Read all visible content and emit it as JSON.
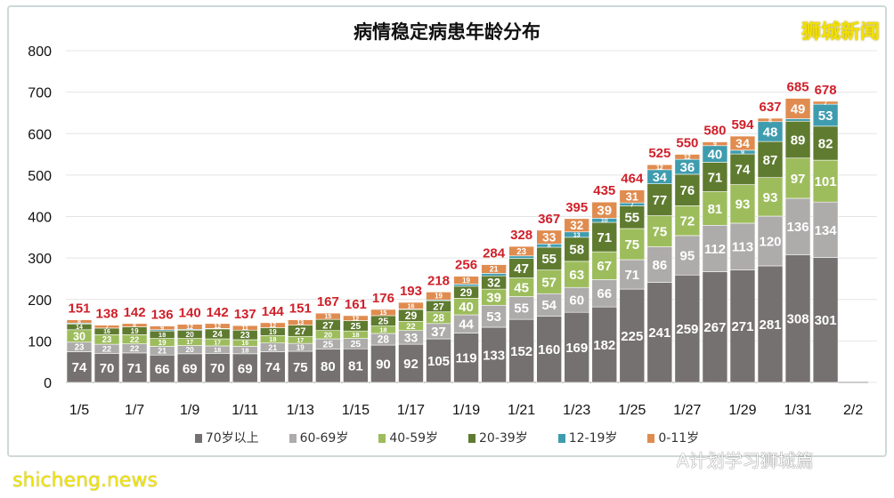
{
  "logo_text": "狮城新闻",
  "watermarks": {
    "site": "shicheng.news",
    "wechat": "A计划学习狮城篇"
  },
  "chart_data": {
    "type": "bar",
    "stacked": true,
    "title": "病情稳定病患年龄分布",
    "xlabel": "",
    "ylabel": "",
    "ylim": [
      0,
      800
    ],
    "yticks": [
      0,
      100,
      200,
      300,
      400,
      500,
      600,
      700,
      800
    ],
    "grid": true,
    "legend_position": "bottom",
    "categories": [
      "1/5",
      "1/6",
      "1/7",
      "1/8",
      "1/9",
      "1/10",
      "1/11",
      "1/12",
      "1/13",
      "1/14",
      "1/15",
      "1/16",
      "1/17",
      "1/18",
      "1/19",
      "1/20",
      "1/21",
      "1/22",
      "1/23",
      "1/24",
      "1/25",
      "1/26",
      "1/27",
      "1/28",
      "1/29",
      "1/30",
      "1/31",
      "2/1"
    ],
    "xtick_labels": [
      "1/5",
      "1/7",
      "1/9",
      "1/11",
      "1/13",
      "1/15",
      "1/17",
      "1/19",
      "1/21",
      "1/23",
      "1/25",
      "1/27",
      "1/29",
      "1/31",
      "2/2"
    ],
    "series": [
      {
        "name": "70岁以上",
        "color": "#767171",
        "values": [
          74,
          70,
          71,
          66,
          69,
          70,
          69,
          74,
          75,
          80,
          81,
          90,
          92,
          105,
          119,
          133,
          152,
          160,
          169,
          182,
          225,
          241,
          259,
          267,
          271,
          281,
          308,
          301
        ]
      },
      {
        "name": "60-69岁",
        "color": "#aeabab",
        "values": [
          23,
          22,
          22,
          21,
          20,
          18,
          18,
          21,
          19,
          25,
          25,
          28,
          33,
          37,
          44,
          53,
          55,
          54,
          60,
          66,
          71,
          86,
          95,
          112,
          113,
          120,
          136,
          134
        ]
      },
      {
        "name": "40-59岁",
        "color": "#9dbd5c",
        "values": [
          30,
          23,
          22,
          19,
          17,
          17,
          16,
          18,
          17,
          20,
          18,
          18,
          22,
          28,
          40,
          39,
          45,
          57,
          63,
          67,
          75,
          75,
          72,
          81,
          93,
          93,
          97,
          101
        ]
      },
      {
        "name": "20-39岁",
        "color": "#5f7b30",
        "values": [
          14,
          16,
          19,
          18,
          20,
          24,
          23,
          19,
          27,
          27,
          25,
          25,
          29,
          27,
          29,
          32,
          47,
          55,
          58,
          71,
          55,
          77,
          76,
          71,
          74,
          87,
          89,
          82
        ]
      },
      {
        "name": "12-19岁",
        "color": "#3f9caf",
        "values": [
          2,
          0,
          0,
          3,
          2,
          1,
          0,
          0,
          0,
          0,
          0,
          0,
          1,
          2,
          5,
          6,
          6,
          8,
          13,
          10,
          7,
          34,
          36,
          40,
          9,
          48,
          6,
          53
        ]
      },
      {
        "name": "0-11岁",
        "color": "#e08c50",
        "values": [
          8,
          7,
          8,
          9,
          12,
          12,
          11,
          12,
          13,
          15,
          12,
          15,
          16,
          19,
          19,
          21,
          23,
          33,
          32,
          39,
          31,
          12,
          12,
          9,
          34,
          8,
          49,
          7
        ]
      }
    ],
    "totals": [
      151,
      138,
      142,
      136,
      140,
      142,
      137,
      144,
      151,
      167,
      161,
      176,
      193,
      218,
      256,
      284,
      328,
      367,
      395,
      435,
      464,
      525,
      550,
      580,
      594,
      637,
      685,
      678
    ],
    "total_label_color": "#d0202a"
  }
}
